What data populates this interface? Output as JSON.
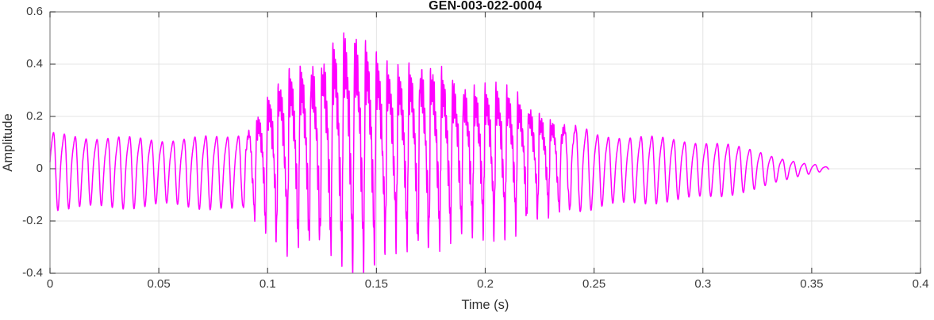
{
  "chart_data": {
    "type": "line",
    "title": "GEN-003-022-0004",
    "xlabel": "Time (s)",
    "ylabel": "Amplitude",
    "xlim": [
      0,
      0.4
    ],
    "ylim": [
      -0.4,
      0.6
    ],
    "xticks": [
      0,
      0.05,
      0.1,
      0.15,
      0.2,
      0.25,
      0.3,
      0.35,
      0.4
    ],
    "xtick_labels": [
      "0",
      "0.05",
      "0.1",
      "0.15",
      "0.2",
      "0.25",
      "0.3",
      "0.35",
      "0.4"
    ],
    "yticks": [
      -0.4,
      -0.2,
      0,
      0.2,
      0.4,
      0.6
    ],
    "ytick_labels": [
      "-0.4",
      "-0.2",
      "0",
      "0.2",
      "0.4",
      "0.6"
    ],
    "grid": true,
    "legend": "none",
    "line_color": "#FF00FF",
    "axis_color": "#8a8a8a",
    "tick_color": "#4f4f4f",
    "grid_color": "#e4e4e4",
    "tick_label_color": "#3b3b3b",
    "background_color": "#ffffff",
    "series": [
      {
        "name": "audio waveform",
        "kind": "audio-waveform",
        "fundamental_hz": 200,
        "duration_s": 0.358,
        "voiced_interval_s": [
          0.088,
          0.235
        ],
        "envelope": {
          "t": [
            0,
            0.02,
            0.05,
            0.08,
            0.088,
            0.095,
            0.105,
            0.115,
            0.125,
            0.133,
            0.14,
            0.15,
            0.16,
            0.18,
            0.2,
            0.21,
            0.22,
            0.23,
            0.24,
            0.25,
            0.27,
            0.29,
            0.31,
            0.325,
            0.335,
            0.345,
            0.352,
            0.358
          ],
          "upper": [
            0.13,
            0.12,
            0.11,
            0.12,
            0.14,
            0.22,
            0.33,
            0.42,
            0.48,
            0.53,
            0.5,
            0.47,
            0.43,
            0.38,
            0.33,
            0.3,
            0.27,
            0.22,
            0.17,
            0.13,
            0.12,
            0.11,
            0.09,
            0.07,
            0.04,
            0.02,
            0.015,
            0.005
          ],
          "lower": [
            -0.15,
            -0.15,
            -0.14,
            -0.15,
            -0.17,
            -0.24,
            -0.3,
            -0.33,
            -0.34,
            -0.36,
            -0.4,
            -0.38,
            -0.33,
            -0.3,
            -0.27,
            -0.25,
            -0.23,
            -0.2,
            -0.17,
            -0.15,
            -0.13,
            -0.12,
            -0.1,
            -0.08,
            -0.05,
            -0.025,
            -0.015,
            -0.005
          ]
        }
      }
    ]
  }
}
